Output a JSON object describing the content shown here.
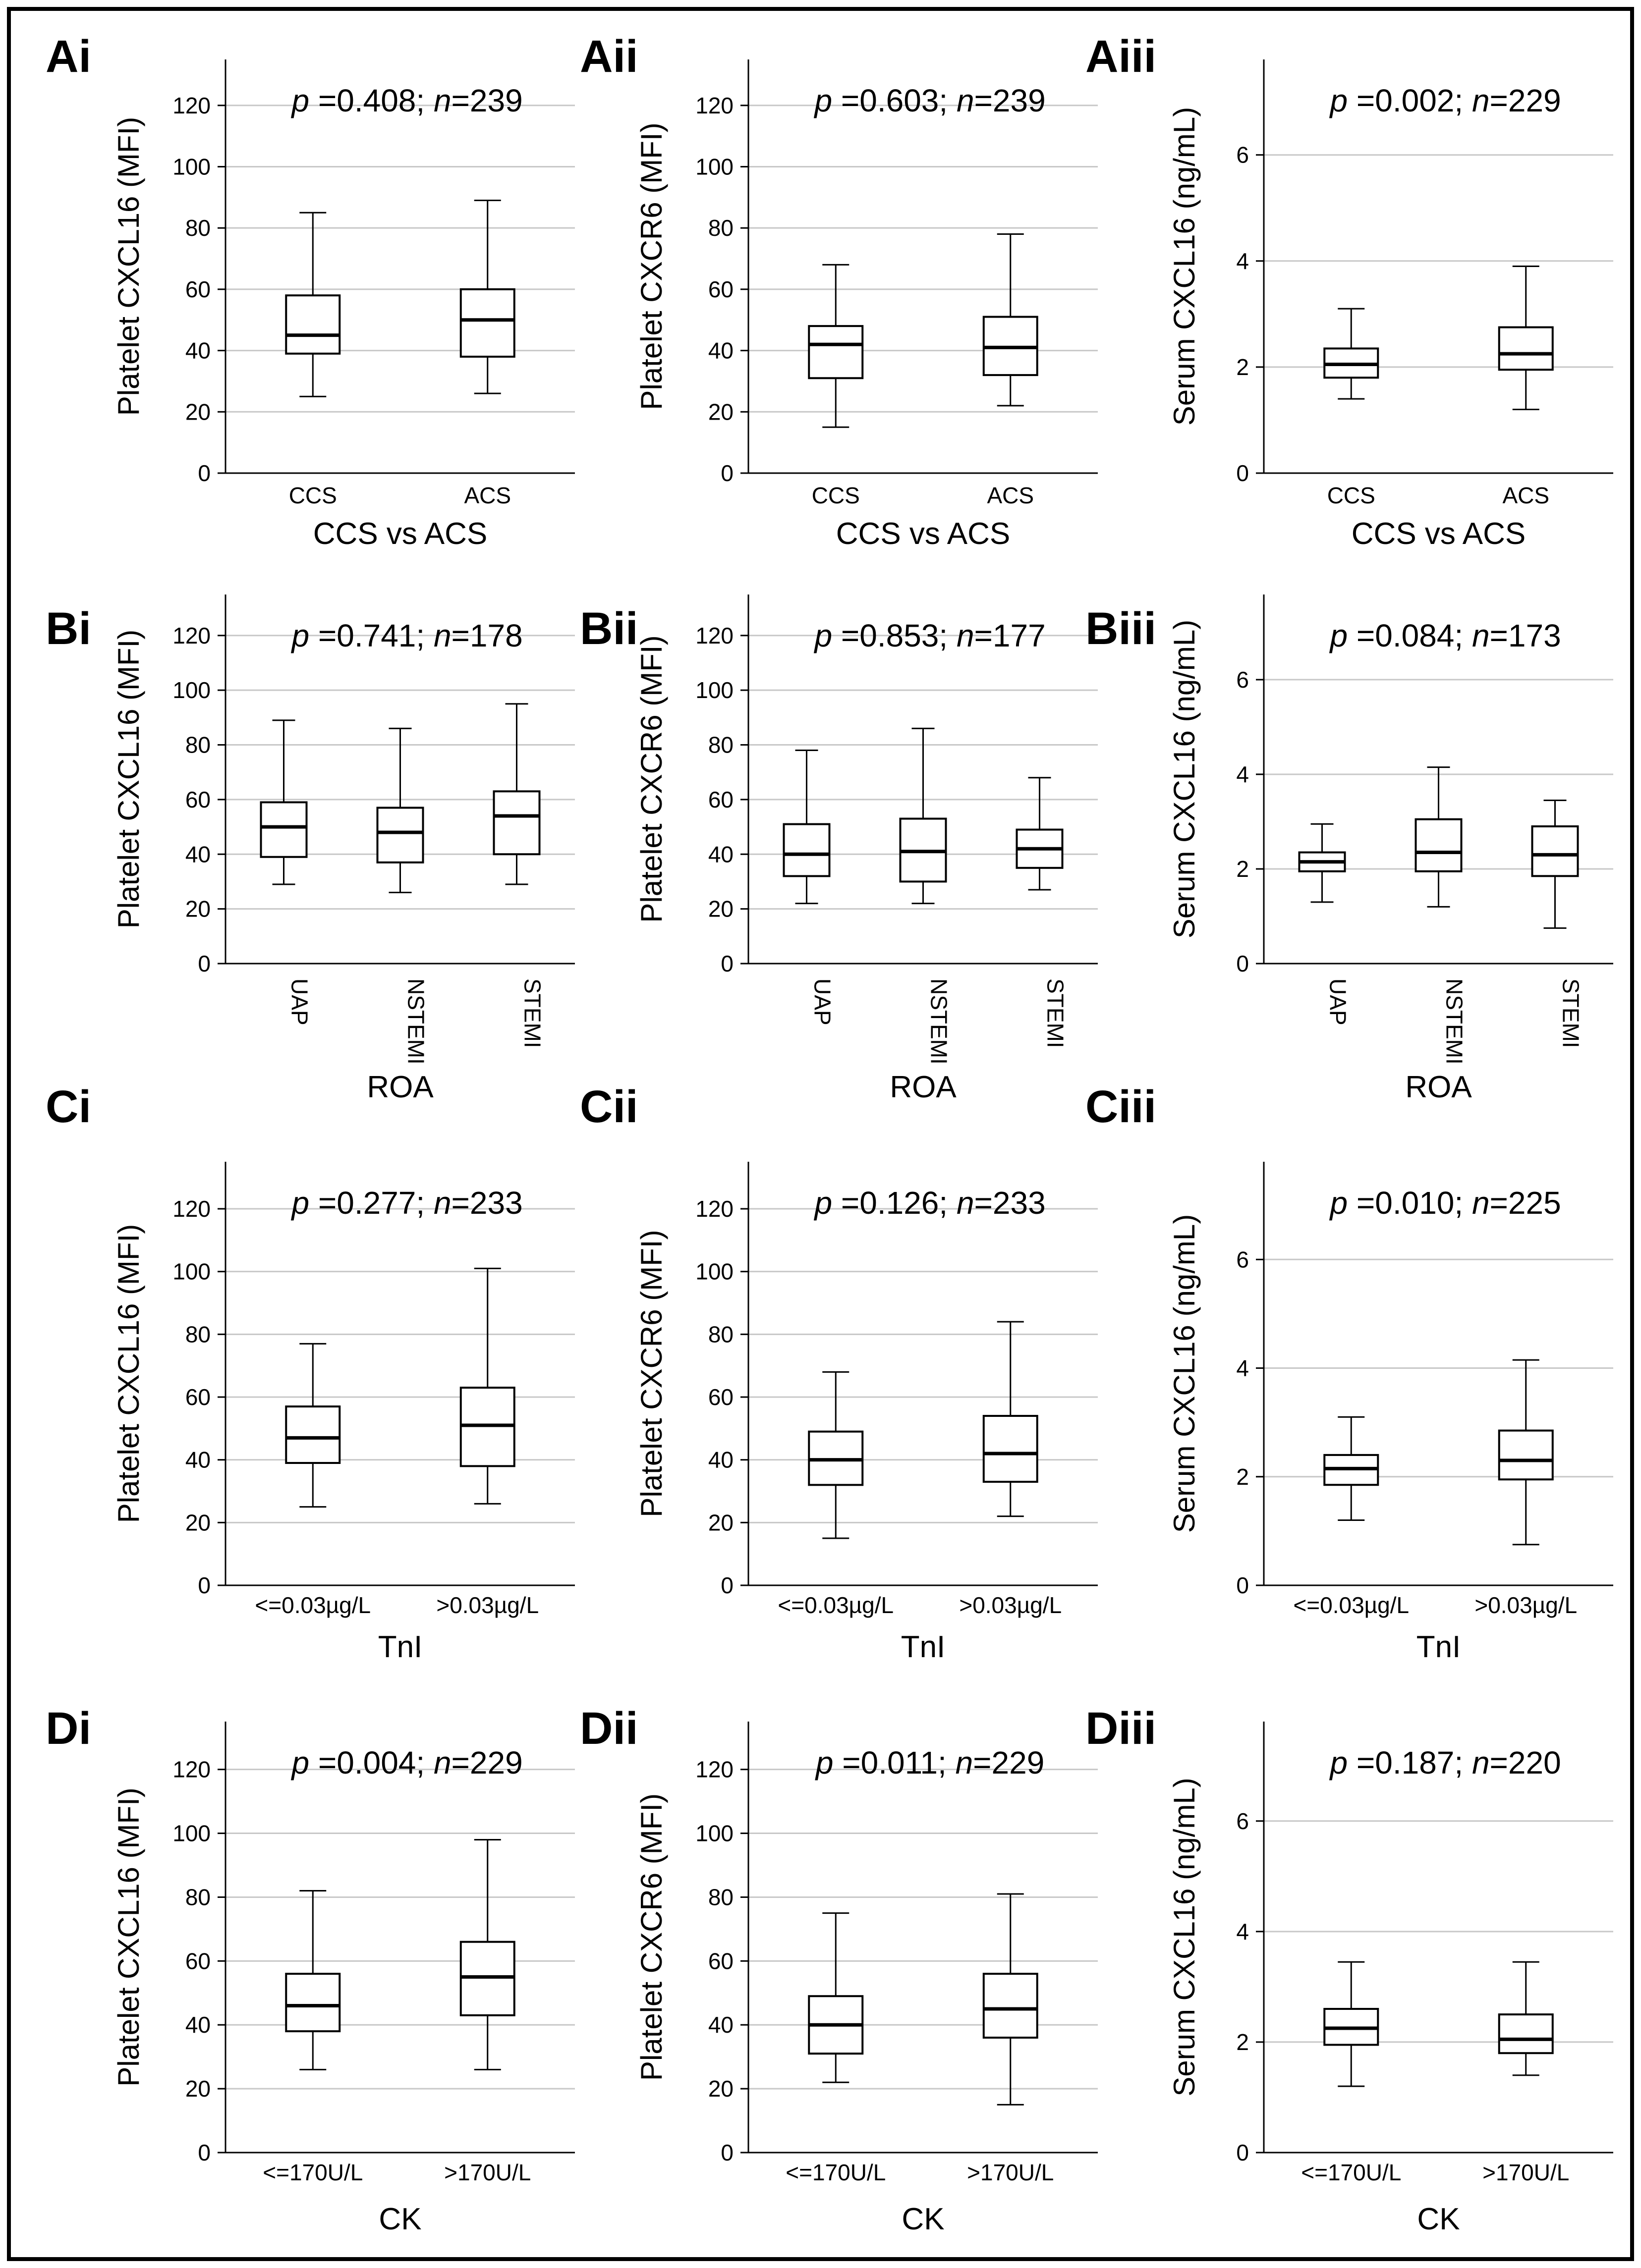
{
  "figure": {
    "y_axis_labels": {
      "platelet_cxcl16": "Platelet CXCL16 (MFI)",
      "platelet_cxcr6": "Platelet CXCR6 (MFI)",
      "serum_cxcl16": "Serum CXCL16 (ng/mL)"
    },
    "colors": {
      "grid": "#c8c8c8",
      "ink": "#000000",
      "box_fill": "#ffffff"
    }
  },
  "chart_data": [
    {
      "id": "Ai",
      "type": "box",
      "panel_label": "Ai",
      "ylabel": "Platelet CXCL16 (MFI)",
      "ylim": [
        0,
        135
      ],
      "yticks": [
        0,
        20,
        40,
        60,
        80,
        100,
        120
      ],
      "grid": true,
      "annotation": {
        "p_prefix": "p",
        "p_value": "=0.408;",
        "n_prefix": "n",
        "n_value": "=239"
      },
      "xlabel": "CCS vs ACS",
      "rotate_ticks": false,
      "categories": [
        "CCS",
        "ACS"
      ],
      "boxes": [
        {
          "min": 25,
          "q1": 39,
          "median": 45,
          "q3": 58,
          "max": 85
        },
        {
          "min": 26,
          "q1": 38,
          "median": 50,
          "q3": 60,
          "max": 89
        }
      ]
    },
    {
      "id": "Aii",
      "type": "box",
      "panel_label": "Aii",
      "ylabel": "Platelet CXCR6 (MFI)",
      "ylim": [
        0,
        135
      ],
      "yticks": [
        0,
        20,
        40,
        60,
        80,
        100,
        120
      ],
      "grid": true,
      "annotation": {
        "p_prefix": "p",
        "p_value": "=0.603;",
        "n_prefix": "n",
        "n_value": "=239"
      },
      "xlabel": "CCS vs ACS",
      "rotate_ticks": false,
      "categories": [
        "CCS",
        "ACS"
      ],
      "boxes": [
        {
          "min": 15,
          "q1": 31,
          "median": 42,
          "q3": 48,
          "max": 68
        },
        {
          "min": 22,
          "q1": 32,
          "median": 41,
          "q3": 51,
          "max": 78
        }
      ]
    },
    {
      "id": "Aiii",
      "type": "box",
      "panel_label": "Aiii",
      "ylabel": "Serum CXCL16 (ng/mL)",
      "ylim": [
        0,
        7.8
      ],
      "yticks": [
        0,
        2,
        4,
        6
      ],
      "grid": true,
      "annotation": {
        "p_prefix": "p",
        "p_value": "=0.002;",
        "n_prefix": "n",
        "n_value": "=229"
      },
      "xlabel": "CCS vs ACS",
      "rotate_ticks": false,
      "categories": [
        "CCS",
        "ACS"
      ],
      "boxes": [
        {
          "min": 1.4,
          "q1": 1.8,
          "median": 2.05,
          "q3": 2.35,
          "max": 3.1
        },
        {
          "min": 1.2,
          "q1": 1.95,
          "median": 2.25,
          "q3": 2.75,
          "max": 3.9
        }
      ]
    },
    {
      "id": "Bi",
      "type": "box",
      "panel_label": "Bi",
      "ylabel": "Platelet CXCL16 (MFI)",
      "ylim": [
        0,
        135
      ],
      "yticks": [
        0,
        20,
        40,
        60,
        80,
        100,
        120
      ],
      "grid": true,
      "annotation": {
        "p_prefix": "p",
        "p_value": "=0.741;",
        "n_prefix": "n",
        "n_value": "=178"
      },
      "xlabel": "ROA",
      "rotate_ticks": true,
      "categories": [
        "UAP",
        "NSTEMI",
        "STEMI"
      ],
      "boxes": [
        {
          "min": 29,
          "q1": 39,
          "median": 50,
          "q3": 59,
          "max": 89
        },
        {
          "min": 26,
          "q1": 37,
          "median": 48,
          "q3": 57,
          "max": 86
        },
        {
          "min": 29,
          "q1": 40,
          "median": 54,
          "q3": 63,
          "max": 95
        }
      ]
    },
    {
      "id": "Bii",
      "type": "box",
      "panel_label": "Bii",
      "ylabel": "Platelet CXCR6 (MFI)",
      "ylim": [
        0,
        135
      ],
      "yticks": [
        0,
        20,
        40,
        60,
        80,
        100,
        120
      ],
      "grid": true,
      "annotation": {
        "p_prefix": "p",
        "p_value": "=0.853;",
        "n_prefix": "n",
        "n_value": "=177"
      },
      "xlabel": "ROA",
      "rotate_ticks": true,
      "categories": [
        "UAP",
        "NSTEMI",
        "STEMI"
      ],
      "boxes": [
        {
          "min": 22,
          "q1": 32,
          "median": 40,
          "q3": 51,
          "max": 78
        },
        {
          "min": 22,
          "q1": 30,
          "median": 41,
          "q3": 53,
          "max": 86
        },
        {
          "min": 27,
          "q1": 35,
          "median": 42,
          "q3": 49,
          "max": 68
        }
      ]
    },
    {
      "id": "Biii",
      "type": "box",
      "panel_label": "Biii",
      "ylabel": "Serum CXCL16 (ng/mL)",
      "ylim": [
        0,
        7.8
      ],
      "yticks": [
        0,
        2,
        4,
        6
      ],
      "grid": true,
      "annotation": {
        "p_prefix": "p",
        "p_value": "=0.084;",
        "n_prefix": "n",
        "n_value": "=173"
      },
      "xlabel": "ROA",
      "rotate_ticks": true,
      "categories": [
        "UAP",
        "NSTEMI",
        "STEMI"
      ],
      "boxes": [
        {
          "min": 1.3,
          "q1": 1.95,
          "median": 2.15,
          "q3": 2.35,
          "max": 2.95
        },
        {
          "min": 1.2,
          "q1": 1.95,
          "median": 2.35,
          "q3": 3.05,
          "max": 4.15
        },
        {
          "min": 0.75,
          "q1": 1.85,
          "median": 2.3,
          "q3": 2.9,
          "max": 3.45
        }
      ]
    },
    {
      "id": "Ci",
      "type": "box",
      "panel_label": "Ci",
      "ylabel": "Platelet CXCL16 (MFI)",
      "ylim": [
        0,
        135
      ],
      "yticks": [
        0,
        20,
        40,
        60,
        80,
        100,
        120
      ],
      "grid": true,
      "annotation": {
        "p_prefix": "p",
        "p_value": "=0.277;",
        "n_prefix": "n",
        "n_value": "=233"
      },
      "xlabel": "TnI",
      "rotate_ticks": false,
      "categories": [
        "<=0.03µg/L",
        ">0.03µg/L"
      ],
      "boxes": [
        {
          "min": 25,
          "q1": 39,
          "median": 47,
          "q3": 57,
          "max": 77
        },
        {
          "min": 26,
          "q1": 38,
          "median": 51,
          "q3": 63,
          "max": 101
        }
      ]
    },
    {
      "id": "Cii",
      "type": "box",
      "panel_label": "Cii",
      "ylabel": "Platelet CXCR6 (MFI)",
      "ylim": [
        0,
        135
      ],
      "yticks": [
        0,
        20,
        40,
        60,
        80,
        100,
        120
      ],
      "grid": true,
      "annotation": {
        "p_prefix": "p",
        "p_value": "=0.126;",
        "n_prefix": "n",
        "n_value": "=233"
      },
      "xlabel": "TnI",
      "rotate_ticks": false,
      "categories": [
        "<=0.03µg/L",
        ">0.03µg/L"
      ],
      "boxes": [
        {
          "min": 15,
          "q1": 32,
          "median": 40,
          "q3": 49,
          "max": 68
        },
        {
          "min": 22,
          "q1": 33,
          "median": 42,
          "q3": 54,
          "max": 84
        }
      ]
    },
    {
      "id": "Ciii",
      "type": "box",
      "panel_label": "Ciii",
      "ylabel": "Serum CXCL16 (ng/mL)",
      "ylim": [
        0,
        7.8
      ],
      "yticks": [
        0,
        2,
        4,
        6
      ],
      "grid": true,
      "annotation": {
        "p_prefix": "p",
        "p_value": "=0.010;",
        "n_prefix": "n",
        "n_value": "=225"
      },
      "xlabel": "TnI",
      "rotate_ticks": false,
      "categories": [
        "<=0.03µg/L",
        ">0.03µg/L"
      ],
      "boxes": [
        {
          "min": 1.2,
          "q1": 1.85,
          "median": 2.15,
          "q3": 2.4,
          "max": 3.1
        },
        {
          "min": 0.75,
          "q1": 1.95,
          "median": 2.3,
          "q3": 2.85,
          "max": 4.15
        }
      ]
    },
    {
      "id": "Di",
      "type": "box",
      "panel_label": "Di",
      "ylabel": "Platelet CXCL16 (MFI)",
      "ylim": [
        0,
        135
      ],
      "yticks": [
        0,
        20,
        40,
        60,
        80,
        100,
        120
      ],
      "grid": true,
      "annotation": {
        "p_prefix": "p",
        "p_value": "=0.004;",
        "n_prefix": "n",
        "n_value": "=229"
      },
      "xlabel": "CK",
      "rotate_ticks": false,
      "categories": [
        "<=170U/L",
        ">170U/L"
      ],
      "boxes": [
        {
          "min": 26,
          "q1": 38,
          "median": 46,
          "q3": 56,
          "max": 82
        },
        {
          "min": 26,
          "q1": 43,
          "median": 55,
          "q3": 66,
          "max": 98
        }
      ]
    },
    {
      "id": "Dii",
      "type": "box",
      "panel_label": "Dii",
      "ylabel": "Platelet CXCR6 (MFI)",
      "ylim": [
        0,
        135
      ],
      "yticks": [
        0,
        20,
        40,
        60,
        80,
        100,
        120
      ],
      "grid": true,
      "annotation": {
        "p_prefix": "p",
        "p_value": "=0.011;",
        "n_prefix": "n",
        "n_value": "=229"
      },
      "xlabel": "CK",
      "rotate_ticks": false,
      "categories": [
        "<=170U/L",
        ">170U/L"
      ],
      "boxes": [
        {
          "min": 22,
          "q1": 31,
          "median": 40,
          "q3": 49,
          "max": 75
        },
        {
          "min": 15,
          "q1": 36,
          "median": 45,
          "q3": 56,
          "max": 81
        }
      ]
    },
    {
      "id": "Diii",
      "type": "box",
      "panel_label": "Diii",
      "ylabel": "Serum CXCL16 (ng/mL)",
      "ylim": [
        0,
        7.8
      ],
      "yticks": [
        0,
        2,
        4,
        6
      ],
      "grid": true,
      "annotation": {
        "p_prefix": "p",
        "p_value": "=0.187;",
        "n_prefix": "n",
        "n_value": "=220"
      },
      "xlabel": "CK",
      "rotate_ticks": false,
      "categories": [
        "<=170U/L",
        ">170U/L"
      ],
      "boxes": [
        {
          "min": 1.2,
          "q1": 1.95,
          "median": 2.25,
          "q3": 2.6,
          "max": 3.45
        },
        {
          "min": 1.4,
          "q1": 1.8,
          "median": 2.05,
          "q3": 2.5,
          "max": 3.45
        }
      ]
    }
  ]
}
